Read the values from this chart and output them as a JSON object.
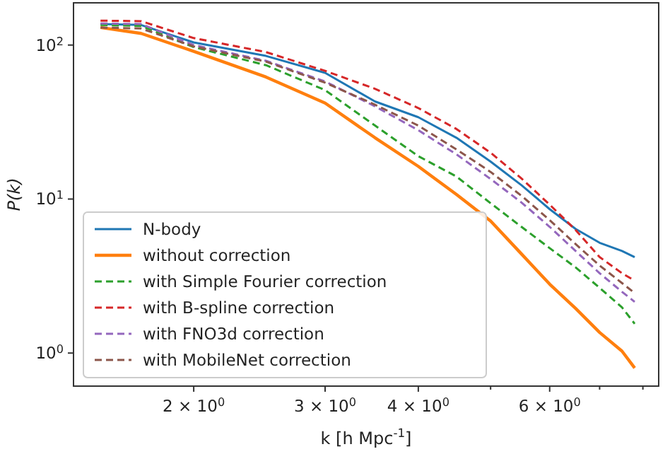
{
  "chart_data": {
    "type": "line",
    "xlabel": "k [h Mpc$^{-1}$]",
    "ylabel": "P(k)",
    "log": "xy",
    "grid": false,
    "legend": "bottom left",
    "xlim": [
      1.38,
      8.4
    ],
    "ylim": [
      0.61,
      188
    ],
    "xticks": [
      {
        "value": 2,
        "label": "2 × 10$^{0}$"
      },
      {
        "value": 3,
        "label": "3 × 10$^{0}$"
      },
      {
        "value": 4,
        "label": "4 × 10$^{0}$"
      },
      {
        "value": 5,
        "label": null
      },
      {
        "value": 6,
        "label": "6 × 10$^{0}$"
      },
      {
        "value": 7,
        "label": null
      },
      {
        "value": 8,
        "label": null
      }
    ],
    "yticks": [
      {
        "value": 1,
        "label": "10$^{0}$"
      },
      {
        "value": 10,
        "label": "10$^{1}$"
      },
      {
        "value": 100,
        "label": "10$^{2}$"
      }
    ],
    "x": [
      1.5,
      1.7,
      2,
      2.5,
      3,
      3.5,
      4,
      4.5,
      5,
      5.5,
      6,
      6.5,
      7,
      7.5,
      7.8
    ],
    "series": [
      {
        "name": "N-body",
        "color": "#1f77b4",
        "line_style": "solid",
        "values": [
          137,
          135,
          104,
          85,
          66,
          43,
          34,
          25,
          17.5,
          12.3,
          8.6,
          6.4,
          5.2,
          4.6,
          4.2
        ]
      },
      {
        "name": "without correction",
        "color": "#ff7f0e",
        "line_style": "solid",
        "values": [
          130,
          119,
          91,
          62,
          42,
          25,
          16.3,
          10.7,
          7.2,
          4.4,
          2.8,
          1.95,
          1.36,
          1.03,
          0.8
        ]
      },
      {
        "name": "with Simple Fourier correction",
        "color": "#2ca02c",
        "line_style": "dashed",
        "values": [
          135,
          133,
          97,
          74,
          51,
          30,
          19,
          14,
          9.4,
          6.6,
          4.8,
          3.6,
          2.65,
          1.98,
          1.55
        ]
      },
      {
        "name": "with B-spline correction",
        "color": "#d62728",
        "line_style": "dashed",
        "values": [
          144,
          143,
          111,
          90,
          68,
          52,
          39,
          28.5,
          20,
          13.6,
          9.2,
          6.3,
          4.2,
          3.3,
          2.95
        ]
      },
      {
        "name": "with FNO3d correction",
        "color": "#9467bd",
        "line_style": "dashed",
        "values": [
          138,
          137,
          100,
          79,
          58,
          40,
          28,
          19.5,
          13.5,
          9.5,
          6.6,
          4.6,
          3.3,
          2.5,
          2.15
        ]
      },
      {
        "name": "with MobileNet correction",
        "color": "#8c564b",
        "line_style": "dashed",
        "values": [
          130,
          128,
          98,
          78,
          57,
          41,
          30,
          21,
          15,
          10.5,
          7.3,
          5.1,
          3.7,
          2.85,
          2.45
        ]
      }
    ]
  }
}
